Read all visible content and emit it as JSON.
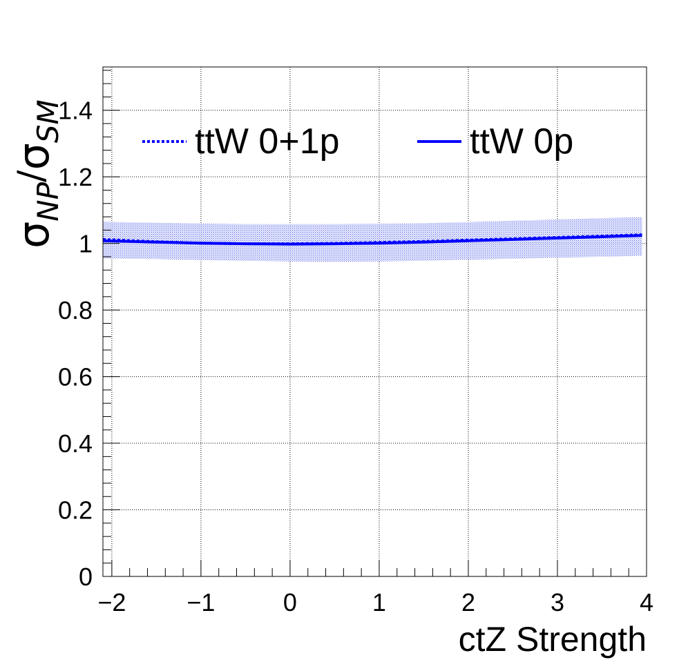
{
  "chart_data": {
    "type": "line",
    "xlabel": "ctZ Strength",
    "ylabel": {
      "symbol": "σ",
      "numerator_sub": "NP",
      "slash": "/",
      "denominator_sub": "SM"
    },
    "xlim": [
      -2.1,
      4.0
    ],
    "ylim": [
      0,
      1.53
    ],
    "x_ticks": [
      {
        "value": -2,
        "label": "−2"
      },
      {
        "value": -1,
        "label": "−1"
      },
      {
        "value": 0,
        "label": "0"
      },
      {
        "value": 1,
        "label": "1"
      },
      {
        "value": 2,
        "label": "2"
      },
      {
        "value": 3,
        "label": "3"
      },
      {
        "value": 4,
        "label": "4"
      }
    ],
    "y_ticks": [
      {
        "value": 0,
        "label": "0"
      },
      {
        "value": 0.2,
        "label": "0.2"
      },
      {
        "value": 0.4,
        "label": "0.4"
      },
      {
        "value": 0.6,
        "label": "0.6"
      },
      {
        "value": 0.8,
        "label": "0.8"
      },
      {
        "value": 1.0,
        "label": "1"
      },
      {
        "value": 1.2,
        "label": "1.2"
      },
      {
        "value": 1.4,
        "label": "1.4"
      }
    ],
    "grid": true,
    "legend_position": "top",
    "band": {
      "x": [
        -2.1,
        -1.5,
        -1.0,
        -0.5,
        0.0,
        0.5,
        1.0,
        1.5,
        2.0,
        2.5,
        3.0,
        3.5,
        3.95
      ],
      "upper": [
        1.065,
        1.062,
        1.06,
        1.058,
        1.058,
        1.058,
        1.059,
        1.061,
        1.064,
        1.068,
        1.072,
        1.076,
        1.079
      ],
      "lower": [
        0.955,
        0.953,
        0.95,
        0.948,
        0.946,
        0.945,
        0.946,
        0.948,
        0.951,
        0.954,
        0.957,
        0.96,
        0.963
      ]
    },
    "series": [
      {
        "name": "ttW 0+1p",
        "style": "dotted",
        "color": "#0000ff",
        "x": [
          -2.1,
          -1.5,
          -1.0,
          -0.5,
          0.0,
          0.5,
          1.0,
          1.5,
          2.0,
          2.5,
          3.0,
          3.5,
          3.95
        ],
        "y": [
          1.012,
          1.005,
          1.001,
          0.999,
          0.999,
          1.0,
          1.003,
          1.006,
          1.01,
          1.014,
          1.018,
          1.022,
          1.026
        ]
      },
      {
        "name": "ttW 0p",
        "style": "solid",
        "color": "#0000ff",
        "x": [
          -2.1,
          -1.5,
          -1.0,
          -0.5,
          0.0,
          0.5,
          1.0,
          1.5,
          2.0,
          2.5,
          3.0,
          3.5,
          3.95
        ],
        "y": [
          1.008,
          1.004,
          1.001,
          0.999,
          0.998,
          0.999,
          1.001,
          1.004,
          1.008,
          1.012,
          1.016,
          1.02,
          1.024
        ]
      }
    ]
  }
}
